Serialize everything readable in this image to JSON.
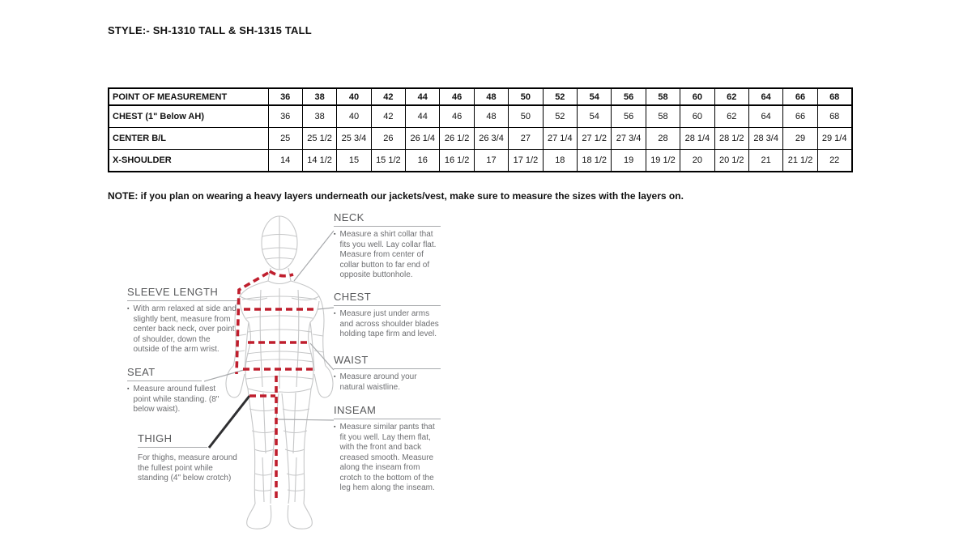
{
  "title": "STYLE:- SH-1310 TALL & SH-1315 TALL",
  "note": "NOTE: if you plan on wearing a heavy layers underneath our jackets/vest, make sure to measure the sizes with the layers on.",
  "bullet_glyph": "▪",
  "table": {
    "header": [
      "POINT OF MEASUREMENT",
      "36",
      "38",
      "40",
      "42",
      "44",
      "46",
      "48",
      "50",
      "52",
      "54",
      "56",
      "58",
      "60",
      "62",
      "64",
      "66",
      "68"
    ],
    "rows": [
      {
        "label": "CHEST (1\" Below AH)",
        "values": [
          "36",
          "38",
          "40",
          "42",
          "44",
          "46",
          "48",
          "50",
          "52",
          "54",
          "56",
          "58",
          "60",
          "62",
          "64",
          "66",
          "68"
        ]
      },
      {
        "label": "CENTER B/L",
        "values": [
          "25",
          "25 1/2",
          "25 3/4",
          "26",
          "26 1/4",
          "26 1/2",
          "26 3/4",
          "27",
          "27 1/4",
          "27 1/2",
          "27 3/4",
          "28",
          "28 1/4",
          "28 1/2",
          "28 3/4",
          "29",
          "29 1/4"
        ]
      },
      {
        "label": "X-SHOULDER",
        "values": [
          "14",
          "14 1/2",
          "15",
          "15 1/2",
          "16",
          "16 1/2",
          "17",
          "17 1/2",
          "18",
          "18 1/2",
          "19",
          "19 1/2",
          "20",
          "20 1/2",
          "21",
          "21 1/2",
          "22"
        ]
      }
    ]
  },
  "guide": {
    "neck": {
      "heading": "NECK",
      "text": "Measure a shirt collar that fits you well. Lay collar flat. Measure from center of collar button to far end of opposite buttonhole."
    },
    "chest": {
      "heading": "CHEST",
      "text": "Measure just under arms and across shoulder blades holding tape firm and level."
    },
    "waist": {
      "heading": "WAIST",
      "text": "Measure around your natural waistline."
    },
    "inseam": {
      "heading": "INSEAM",
      "text": "Measure similar pants that fit you well. Lay them flat, with the front and back creased smooth. Measure along the inseam from crotch to the bottom of the leg hem along the inseam."
    },
    "sleeve_length": {
      "heading": "SLEEVE LENGTH",
      "text": "With arm relaxed at side and slightly bent, measure from center back neck, over point of shoulder, down the outside of the arm wrist."
    },
    "seat": {
      "heading": "SEAT",
      "text": "Measure around fullest point while standing. (8\" below waist)."
    },
    "thigh": {
      "heading": "THIGH",
      "text": "For thighs, measure around the fullest point while standing (4\" below crotch)"
    }
  },
  "colors": {
    "measure_dash_red": "#bf1e2d",
    "wireframe_gray": "#c6c7c8",
    "connector_gray": "#a7a9ac",
    "heading_gray": "#58595b",
    "body_text_gray": "#6d6e71",
    "table_border": "#000000"
  }
}
